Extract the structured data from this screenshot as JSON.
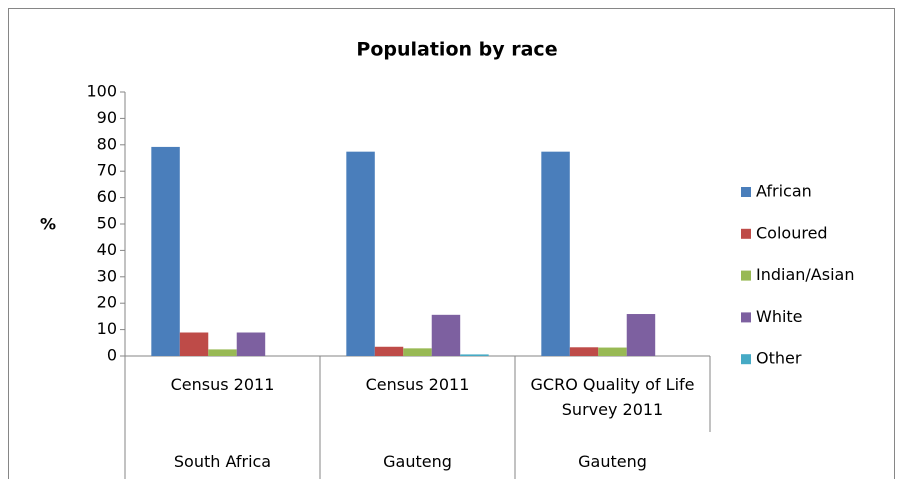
{
  "chart_data": {
    "type": "bar",
    "title": "Population by race",
    "ylabel": "%",
    "categories": [
      "Census 2011",
      "Census 2011",
      "GCRO Quality of Life Survey 2011"
    ],
    "category_groups": [
      "South Africa",
      "Gauteng",
      "Gauteng"
    ],
    "series": [
      {
        "name": "African",
        "color": "#4a7ebb",
        "values": [
          79.2,
          77.4,
          77.4
        ]
      },
      {
        "name": "Coloured",
        "color": "#be4b48",
        "values": [
          8.9,
          3.5,
          3.3
        ]
      },
      {
        "name": "Indian/Asian",
        "color": "#98b954",
        "values": [
          2.5,
          2.9,
          3.2
        ]
      },
      {
        "name": "White",
        "color": "#7d60a0",
        "values": [
          8.9,
          15.6,
          15.9
        ]
      },
      {
        "name": "Other",
        "color": "#46aac5",
        "values": [
          0,
          0.6,
          0
        ]
      }
    ],
    "ylim": [
      0,
      100
    ],
    "yticks": [
      0,
      10,
      20,
      30,
      40,
      50,
      60,
      70,
      80,
      90,
      100
    ],
    "legend": "right",
    "grid": false
  }
}
